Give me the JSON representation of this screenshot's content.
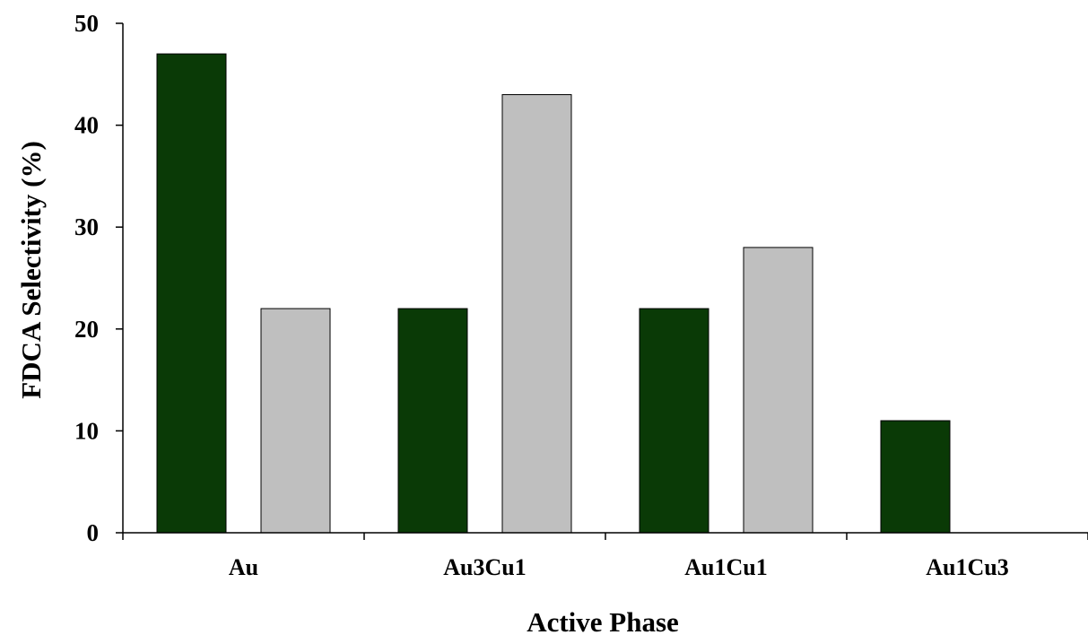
{
  "chart_data": {
    "type": "bar",
    "categories": [
      "Au",
      "Au3Cu1",
      "Au1Cu1",
      "Au1Cu3"
    ],
    "series": [
      {
        "values": [
          47,
          22,
          22,
          11
        ],
        "color": "#0a3a06"
      },
      {
        "values": [
          22,
          43,
          28,
          0
        ],
        "color": "#bfbfbf"
      }
    ],
    "title": "",
    "xlabel": "Active Phase",
    "ylabel": "FDCA Selectivity (%)",
    "ylim": [
      0,
      50
    ],
    "yticks": [
      0,
      10,
      20,
      30,
      40,
      50
    ],
    "grid": false,
    "legend": "none"
  }
}
